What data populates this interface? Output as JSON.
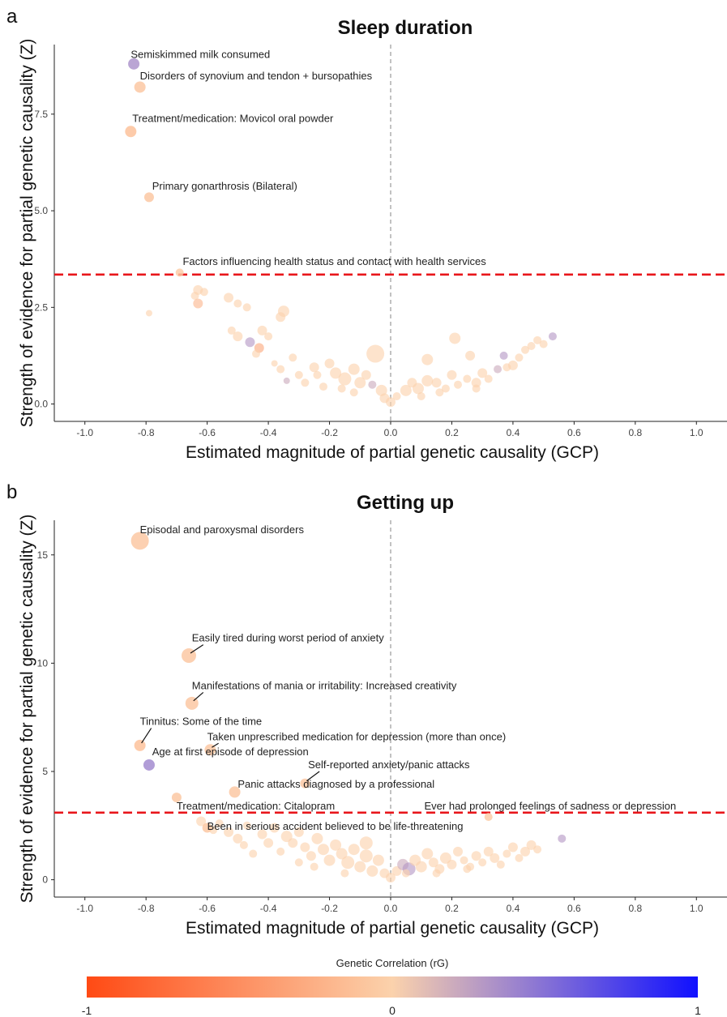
{
  "chart_data": [
    {
      "panel": "a",
      "type": "scatter",
      "title": "Sleep duration",
      "xlabel": "Estimated magnitude of partial genetic causality (GCP)",
      "ylabel": "Strength of evidence for partial genetic causality (Z)",
      "xlim": [
        -1.1,
        1.1
      ],
      "ylim": [
        -0.45,
        9.3
      ],
      "xticks": [
        -1.0,
        -0.8,
        -0.6,
        -0.4,
        -0.2,
        0.0,
        0.2,
        0.4,
        0.6,
        0.8,
        1.0
      ],
      "xtick_labels": [
        "-1.0",
        "-0.8",
        "-0.6",
        "-0.4",
        "-0.2",
        "0.0",
        "0.2",
        "0.4",
        "0.6",
        "0.8",
        "1.0"
      ],
      "yticks": [
        0,
        2.5,
        5,
        7.5
      ],
      "ytick_labels": [
        "0.0",
        "2.5",
        "5.0",
        "7.5"
      ],
      "threshold": 3.35,
      "vline": 0,
      "labeled_points": [
        {
          "x": -0.84,
          "y": 8.8,
          "rg": 0.35,
          "size": 7,
          "label": "Semiskimmed milk consumed",
          "lx": -0.85,
          "ly": 8.95,
          "leader": false
        },
        {
          "x": -0.82,
          "y": 8.2,
          "rg": -0.1,
          "size": 7,
          "label": "Disorders of synovium and tendon +  bursopathies",
          "lx": -0.82,
          "ly": 8.4,
          "leader": false
        },
        {
          "x": -0.85,
          "y": 7.05,
          "rg": -0.15,
          "size": 7,
          "label": "Treatment/medication: Movicol oral powder",
          "lx": -0.845,
          "ly": 7.3,
          "leader": false
        },
        {
          "x": -0.79,
          "y": 5.35,
          "rg": -0.1,
          "size": 6,
          "label": "Primary gonarthrosis (Bilateral)",
          "lx": -0.78,
          "ly": 5.55,
          "leader": false
        },
        {
          "x": -0.69,
          "y": 3.4,
          "rg": -0.05,
          "size": 5,
          "label": "Factors influencing health status and contact with health services",
          "lx": -0.68,
          "ly": 3.6,
          "leader": false
        }
      ],
      "points": [
        [
          -0.63,
          2.95,
          0,
          6
        ],
        [
          -0.61,
          2.9,
          0,
          5
        ],
        [
          -0.64,
          2.8,
          0,
          5
        ],
        [
          -0.63,
          2.6,
          -0.2,
          6
        ],
        [
          -0.79,
          2.35,
          0,
          4
        ],
        [
          -0.53,
          2.75,
          0,
          6
        ],
        [
          -0.5,
          2.6,
          0,
          5
        ],
        [
          -0.47,
          2.5,
          0,
          5
        ],
        [
          -0.35,
          2.4,
          0,
          7
        ],
        [
          -0.36,
          2.25,
          0,
          6
        ],
        [
          -0.52,
          1.9,
          0,
          5
        ],
        [
          -0.5,
          1.75,
          0,
          6
        ],
        [
          -0.42,
          1.9,
          0,
          6
        ],
        [
          -0.4,
          1.75,
          0,
          5
        ],
        [
          -0.46,
          1.6,
          0.3,
          6
        ],
        [
          -0.43,
          1.45,
          -0.3,
          6
        ],
        [
          -0.44,
          1.3,
          0,
          5
        ],
        [
          -0.32,
          1.2,
          0,
          5
        ],
        [
          -0.38,
          1.05,
          0,
          4
        ],
        [
          -0.36,
          0.9,
          0,
          5
        ],
        [
          -0.3,
          0.75,
          0,
          5
        ],
        [
          -0.34,
          0.6,
          0.2,
          4
        ],
        [
          -0.25,
          0.95,
          0,
          6
        ],
        [
          -0.2,
          1.05,
          0,
          6
        ],
        [
          -0.24,
          0.75,
          0,
          5
        ],
        [
          -0.18,
          0.8,
          0,
          7
        ],
        [
          -0.15,
          0.65,
          0,
          8
        ],
        [
          -0.12,
          0.9,
          0,
          7
        ],
        [
          -0.1,
          0.55,
          0,
          7
        ],
        [
          -0.05,
          1.3,
          0,
          11
        ],
        [
          -0.08,
          0.75,
          0,
          6
        ],
        [
          -0.06,
          0.5,
          0.2,
          5
        ],
        [
          -0.03,
          0.35,
          0,
          7
        ],
        [
          -0.02,
          0.15,
          0,
          6
        ],
        [
          0.0,
          0.05,
          0,
          6
        ],
        [
          0.02,
          0.2,
          0,
          5
        ],
        [
          0.05,
          0.35,
          0,
          7
        ],
        [
          0.07,
          0.55,
          0,
          6
        ],
        [
          0.09,
          0.4,
          0,
          7
        ],
        [
          0.12,
          0.6,
          0,
          7
        ],
        [
          0.12,
          1.15,
          0,
          7
        ],
        [
          0.15,
          0.55,
          0,
          6
        ],
        [
          0.18,
          0.4,
          0,
          5
        ],
        [
          0.2,
          0.75,
          0,
          6
        ],
        [
          0.22,
          0.5,
          0,
          5
        ],
        [
          0.21,
          1.7,
          0,
          7
        ],
        [
          0.25,
          0.65,
          0,
          5
        ],
        [
          0.26,
          1.25,
          0,
          6
        ],
        [
          0.28,
          0.55,
          0,
          6
        ],
        [
          0.3,
          0.8,
          0,
          6
        ],
        [
          0.32,
          0.65,
          0,
          5
        ],
        [
          0.35,
          0.9,
          0.2,
          5
        ],
        [
          0.37,
          1.25,
          0.3,
          5
        ],
        [
          0.38,
          0.95,
          0,
          5
        ],
        [
          0.4,
          1.0,
          0,
          6
        ],
        [
          0.42,
          1.2,
          0,
          5
        ],
        [
          0.44,
          1.4,
          0,
          5
        ],
        [
          0.46,
          1.5,
          0,
          5
        ],
        [
          0.48,
          1.65,
          0,
          5
        ],
        [
          0.5,
          1.55,
          0,
          5
        ],
        [
          0.53,
          1.75,
          0.3,
          5
        ],
        [
          -0.28,
          0.55,
          0,
          5
        ],
        [
          -0.22,
          0.45,
          0,
          5
        ],
        [
          -0.16,
          0.4,
          0,
          5
        ],
        [
          -0.12,
          0.3,
          0,
          5
        ],
        [
          0.1,
          0.2,
          0,
          5
        ],
        [
          0.16,
          0.3,
          0,
          5
        ],
        [
          0.28,
          0.4,
          0,
          5
        ]
      ]
    },
    {
      "panel": "b",
      "type": "scatter",
      "title": "Getting up",
      "xlabel": "Estimated magnitude of partial genetic causality (GCP)",
      "ylabel": "Strength of evidence for partial genetic causality (Z)",
      "xlim": [
        -1.1,
        1.1
      ],
      "ylim": [
        -0.8,
        16.6
      ],
      "xticks": [
        -1.0,
        -0.8,
        -0.6,
        -0.4,
        -0.2,
        0.0,
        0.2,
        0.4,
        0.6,
        0.8,
        1.0
      ],
      "xtick_labels": [
        "-1.0",
        "-0.8",
        "-0.6",
        "-0.4",
        "-0.2",
        "0.0",
        "0.2",
        "0.4",
        "0.6",
        "0.8",
        "1.0"
      ],
      "yticks": [
        0,
        5,
        10,
        15
      ],
      "ytick_labels": [
        "0",
        "5",
        "10",
        "15"
      ],
      "threshold": 3.1,
      "vline": 0,
      "labeled_points": [
        {
          "x": -0.82,
          "y": 15.65,
          "rg": -0.1,
          "size": 11,
          "label": "Episodal and paroxysmal disorders",
          "lx": -0.82,
          "ly": 16.0,
          "leader": false
        },
        {
          "x": -0.66,
          "y": 10.35,
          "rg": -0.1,
          "size": 9,
          "label": "Easily tired during worst period of anxiety",
          "lx": -0.65,
          "ly": 11.0,
          "leader": true
        },
        {
          "x": -0.65,
          "y": 8.15,
          "rg": -0.1,
          "size": 8,
          "label": "Manifestations of mania or irritability: Increased creativity",
          "lx": -0.65,
          "ly": 8.8,
          "leader": true
        },
        {
          "x": -0.82,
          "y": 6.2,
          "rg": -0.15,
          "size": 7,
          "label": "Tinnitus: Some of the time",
          "lx": -0.82,
          "ly": 7.15,
          "leader": true
        },
        {
          "x": -0.59,
          "y": 6.0,
          "rg": -0.1,
          "size": 7,
          "label": "Taken unprescribed medication for depression (more than once)",
          "lx": -0.6,
          "ly": 6.45,
          "leader": true
        },
        {
          "x": -0.79,
          "y": 5.3,
          "rg": 0.4,
          "size": 7,
          "label": "Age at first episode of depression",
          "lx": -0.78,
          "ly": 5.75,
          "leader": false
        },
        {
          "x": -0.28,
          "y": 4.45,
          "rg": -0.1,
          "size": 6,
          "label": "Self-reported anxiety/panic attacks",
          "lx": -0.27,
          "ly": 5.15,
          "leader": true
        },
        {
          "x": -0.51,
          "y": 4.05,
          "rg": -0.1,
          "size": 7,
          "label": "Panic attacks diagnosed by a professional",
          "lx": -0.5,
          "ly": 4.25,
          "leader": false
        },
        {
          "x": -0.7,
          "y": 3.8,
          "rg": -0.1,
          "size": 6,
          "label": "Treatment/medication: Citalopram",
          "lx": -0.7,
          "ly": 3.25,
          "leader": false
        },
        {
          "x": 0.32,
          "y": 2.9,
          "rg": -0.05,
          "size": 5,
          "label": "Ever had prolonged feelings of sadness or depression",
          "lx": 0.11,
          "ly": 3.25,
          "leader": false
        },
        {
          "x": -0.6,
          "y": 2.4,
          "rg": -0.1,
          "size": 6,
          "label": "Been in serious accident believed to be life-threatening",
          "lx": -0.6,
          "ly": 2.3,
          "leader": false
        }
      ],
      "points": [
        [
          -0.62,
          2.7,
          0,
          6
        ],
        [
          -0.58,
          2.3,
          0,
          5
        ],
        [
          -0.56,
          2.6,
          0,
          5
        ],
        [
          -0.53,
          2.2,
          0,
          6
        ],
        [
          -0.5,
          1.9,
          0,
          6
        ],
        [
          -0.48,
          1.6,
          0,
          5
        ],
        [
          -0.47,
          2.5,
          0,
          5
        ],
        [
          -0.45,
          1.2,
          0,
          5
        ],
        [
          -0.42,
          2.1,
          0,
          6
        ],
        [
          -0.4,
          1.7,
          0,
          6
        ],
        [
          -0.38,
          2.4,
          0,
          6
        ],
        [
          -0.36,
          1.3,
          0,
          5
        ],
        [
          -0.34,
          2.0,
          0,
          7
        ],
        [
          -0.32,
          1.7,
          0,
          6
        ],
        [
          -0.3,
          2.2,
          0,
          6
        ],
        [
          -0.28,
          1.5,
          0,
          6
        ],
        [
          -0.26,
          1.1,
          0,
          6
        ],
        [
          -0.24,
          1.9,
          0,
          7
        ],
        [
          -0.22,
          1.4,
          0,
          7
        ],
        [
          -0.2,
          0.9,
          0,
          7
        ],
        [
          -0.18,
          1.6,
          0,
          7
        ],
        [
          -0.16,
          1.2,
          0,
          7
        ],
        [
          -0.14,
          0.8,
          0,
          8
        ],
        [
          -0.12,
          1.4,
          0,
          7
        ],
        [
          -0.1,
          0.6,
          0,
          7
        ],
        [
          -0.08,
          1.1,
          0,
          8
        ],
        [
          -0.08,
          1.7,
          0,
          8
        ],
        [
          -0.06,
          0.4,
          0,
          7
        ],
        [
          -0.04,
          0.9,
          0,
          7
        ],
        [
          -0.02,
          0.3,
          0,
          6
        ],
        [
          0.0,
          0.1,
          0,
          6
        ],
        [
          0.02,
          0.4,
          0,
          6
        ],
        [
          0.04,
          0.7,
          0.2,
          7
        ],
        [
          0.06,
          0.5,
          0.3,
          8
        ],
        [
          0.08,
          0.9,
          0,
          7
        ],
        [
          0.1,
          0.6,
          0,
          7
        ],
        [
          0.12,
          1.2,
          0,
          7
        ],
        [
          0.14,
          0.8,
          0,
          6
        ],
        [
          0.16,
          0.5,
          0,
          6
        ],
        [
          0.18,
          1.0,
          0,
          7
        ],
        [
          0.2,
          0.7,
          0,
          6
        ],
        [
          0.22,
          1.3,
          0,
          6
        ],
        [
          0.24,
          0.9,
          0,
          5
        ],
        [
          0.26,
          0.6,
          0,
          5
        ],
        [
          0.28,
          1.1,
          0,
          6
        ],
        [
          0.3,
          0.8,
          0,
          5
        ],
        [
          0.32,
          1.3,
          0,
          6
        ],
        [
          0.34,
          1.0,
          0,
          6
        ],
        [
          0.36,
          0.7,
          0,
          5
        ],
        [
          0.38,
          1.2,
          0,
          5
        ],
        [
          0.4,
          1.5,
          0,
          6
        ],
        [
          0.42,
          1.0,
          0,
          5
        ],
        [
          0.44,
          1.3,
          0,
          6
        ],
        [
          0.46,
          1.6,
          0,
          6
        ],
        [
          0.48,
          1.4,
          0,
          5
        ],
        [
          0.56,
          1.9,
          0.3,
          5
        ],
        [
          -0.3,
          0.8,
          0,
          5
        ],
        [
          -0.25,
          0.6,
          0,
          5
        ],
        [
          -0.15,
          0.3,
          0,
          5
        ],
        [
          0.05,
          0.3,
          0,
          5
        ],
        [
          0.15,
          0.3,
          0,
          5
        ],
        [
          0.25,
          0.5,
          0,
          5
        ]
      ]
    }
  ],
  "legend": {
    "title": "Genetic Correlation (rG)",
    "min_label": "-1",
    "mid_label": "0",
    "max_label": "1",
    "colors": [
      "#ff4a14",
      "#fbd2ac",
      "#1010ff"
    ]
  }
}
